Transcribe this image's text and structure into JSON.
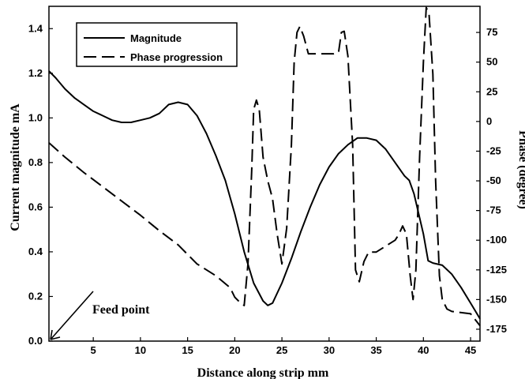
{
  "chart_data": {
    "type": "line",
    "xlabel": "Distance along strip mm",
    "ylabel": "Current magnitude mA",
    "y2label": "Phase (degree)",
    "xlim": [
      0.3,
      46
    ],
    "ylim": [
      0,
      1.5
    ],
    "y2lim": [
      -185,
      97
    ],
    "xticks": [
      5,
      10,
      15,
      20,
      25,
      30,
      35,
      40,
      45
    ],
    "yticks": [
      0.0,
      0.2,
      0.4,
      0.6,
      0.8,
      1.0,
      1.2,
      1.4
    ],
    "y2ticks": [
      75,
      50,
      25,
      0,
      -25,
      -50,
      -75,
      -100,
      -125,
      -150,
      -175
    ],
    "legend_position": "top-left",
    "series": [
      {
        "name": "Magnitude",
        "axis": "left",
        "style": "solid",
        "x": [
          0.3,
          1,
          2,
          3,
          4,
          5,
          6,
          7,
          8,
          9,
          10,
          11,
          12,
          13,
          14,
          15,
          16,
          17,
          18,
          19,
          20,
          21,
          22,
          23,
          23.5,
          24,
          25,
          26,
          27,
          28,
          29,
          30,
          31,
          32,
          33,
          34,
          35,
          36,
          37,
          38,
          38.5,
          39,
          40,
          40.5,
          41,
          42,
          43,
          44,
          45,
          46
        ],
        "y": [
          1.21,
          1.18,
          1.13,
          1.09,
          1.06,
          1.03,
          1.01,
          0.99,
          0.98,
          0.98,
          0.99,
          1.0,
          1.02,
          1.06,
          1.07,
          1.06,
          1.01,
          0.93,
          0.83,
          0.72,
          0.57,
          0.4,
          0.26,
          0.18,
          0.16,
          0.17,
          0.26,
          0.37,
          0.49,
          0.6,
          0.7,
          0.78,
          0.84,
          0.88,
          0.91,
          0.91,
          0.9,
          0.86,
          0.8,
          0.74,
          0.72,
          0.66,
          0.48,
          0.36,
          0.35,
          0.34,
          0.3,
          0.24,
          0.17,
          0.1
        ]
      },
      {
        "name": "Phase progression",
        "axis": "right",
        "style": "dashed",
        "x": [
          0.3,
          2,
          4,
          6,
          8,
          10,
          12,
          14,
          16,
          18,
          19.5,
          20,
          20.5,
          21,
          21.4,
          21.8,
          22,
          22.3,
          22.6,
          23,
          23.5,
          24,
          24.5,
          25,
          25.5,
          26,
          26.3,
          26.6,
          26.9,
          27.3,
          27.8,
          28.5,
          29.5,
          30.5,
          31,
          31.3,
          31.6,
          32,
          32.5,
          32.8,
          33.2,
          33.7,
          34.2,
          35,
          36,
          37,
          37.4,
          37.8,
          38.2,
          38.6,
          38.9,
          39.2,
          39.6,
          40,
          40.3,
          40.6,
          41,
          41.3,
          41.7,
          42,
          42.5,
          43,
          44,
          45,
          46
        ],
        "y": [
          -18,
          -30,
          -43,
          -55,
          -67,
          -79,
          -92,
          -104,
          -120,
          -130,
          -140,
          -148,
          -152,
          -155,
          -120,
          -40,
          10,
          18,
          10,
          -30,
          -50,
          -65,
          -95,
          -120,
          -90,
          -20,
          50,
          75,
          80,
          72,
          57,
          57,
          57,
          57,
          58,
          75,
          76,
          55,
          -20,
          -125,
          -135,
          -118,
          -110,
          -110,
          -105,
          -100,
          -95,
          -88,
          -95,
          -130,
          -150,
          -125,
          -30,
          50,
          96,
          90,
          40,
          -50,
          -130,
          -150,
          -158,
          -160,
          -161,
          -162,
          -172
        ]
      }
    ],
    "legend": [
      {
        "label": "Magnitude",
        "style": "solid"
      },
      {
        "label": "Phase progression",
        "style": "dashed"
      }
    ],
    "annotations": [
      {
        "text": "Feed point",
        "arrow_to": [
          0.3,
          0.0
        ]
      }
    ]
  }
}
